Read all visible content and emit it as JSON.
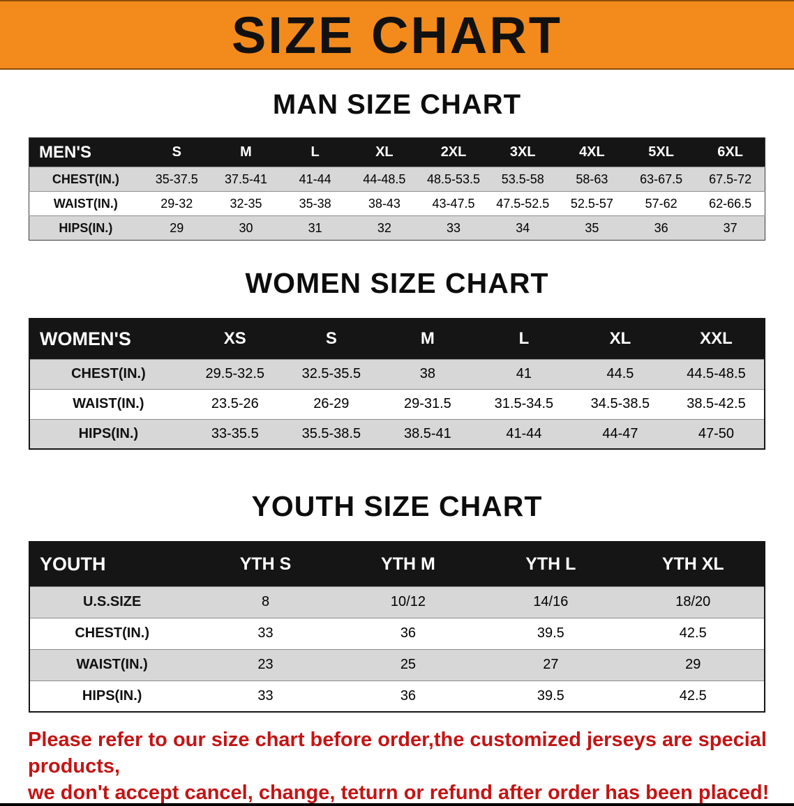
{
  "banner": {
    "title": "SIZE CHART"
  },
  "colors": {
    "banner_bg": "#f28a1c",
    "header_bg": "#151515",
    "row_alt": "#d7d7d7",
    "disclaimer": "#c41414"
  },
  "sections": [
    {
      "id": "men",
      "heading": "MAN SIZE CHART",
      "table": {
        "header": [
          "MEN'S",
          "S",
          "M",
          "L",
          "XL",
          "2XL",
          "3XL",
          "4XL",
          "5XL",
          "6XL"
        ],
        "rows": [
          [
            "CHEST(IN.)",
            "35-37.5",
            "37.5-41",
            "41-44",
            "44-48.5",
            "48.5-53.5",
            "53.5-58",
            "58-63",
            "63-67.5",
            "67.5-72"
          ],
          [
            "WAIST(IN.)",
            "29-32",
            "32-35",
            "35-38",
            "38-43",
            "43-47.5",
            "47.5-52.5",
            "52.5-57",
            "57-62",
            "62-66.5"
          ],
          [
            "HIPS(IN.)",
            "29",
            "30",
            "31",
            "32",
            "33",
            "34",
            "35",
            "36",
            "37"
          ]
        ]
      }
    },
    {
      "id": "women",
      "heading": "WOMEN SIZE CHART",
      "table": {
        "header": [
          "WOMEN'S",
          "XS",
          "S",
          "M",
          "L",
          "XL",
          "XXL"
        ],
        "rows": [
          [
            "CHEST(IN.)",
            "29.5-32.5",
            "32.5-35.5",
            "38",
            "41",
            "44.5",
            "44.5-48.5"
          ],
          [
            "WAIST(IN.)",
            "23.5-26",
            "26-29",
            "29-31.5",
            "31.5-34.5",
            "34.5-38.5",
            "38.5-42.5"
          ],
          [
            "HIPS(IN.)",
            "33-35.5",
            "35.5-38.5",
            "38.5-41",
            "41-44",
            "44-47",
            "47-50"
          ]
        ]
      }
    },
    {
      "id": "youth",
      "heading": "YOUTH SIZE CHART",
      "table": {
        "header": [
          "YOUTH",
          "YTH S",
          "YTH M",
          "YTH L",
          "YTH XL"
        ],
        "rows": [
          [
            "U.S.SIZE",
            "8",
            "10/12",
            "14/16",
            "18/20"
          ],
          [
            "CHEST(IN.)",
            "33",
            "36",
            "39.5",
            "42.5"
          ],
          [
            "WAIST(IN.)",
            "23",
            "25",
            "27",
            "29"
          ],
          [
            "HIPS(IN.)",
            "33",
            "36",
            "39.5",
            "42.5"
          ]
        ]
      }
    }
  ],
  "disclaimer": {
    "lines": [
      "Please refer to our size chart before order,the customized jerseys are special products,",
      "we don't accept cancel, change, teturn or refund after order has been placed!"
    ]
  }
}
